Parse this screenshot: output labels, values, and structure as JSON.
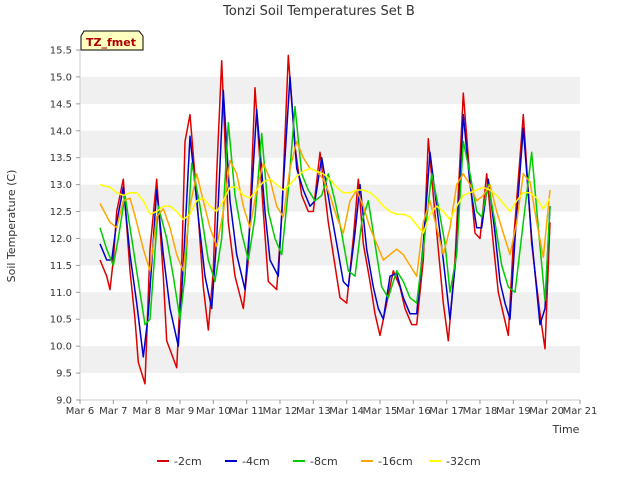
{
  "chart_data": {
    "type": "line",
    "title": "Tonzi Soil Temperatures Set B",
    "xlabel": "Time",
    "ylabel": "Soil Temperature (C)",
    "badge": "TZ_fmet",
    "xlim": [
      6,
      21
    ],
    "ylim": [
      9.0,
      15.5
    ],
    "x_ticks": [
      {
        "v": 6,
        "label": "Mar 6"
      },
      {
        "v": 7,
        "label": "Mar 7"
      },
      {
        "v": 8,
        "label": "Mar 8"
      },
      {
        "v": 9,
        "label": "Mar 9"
      },
      {
        "v": 10,
        "label": "Mar 10"
      },
      {
        "v": 11,
        "label": "Mar 11"
      },
      {
        "v": 12,
        "label": "Mar 12"
      },
      {
        "v": 13,
        "label": "Mar 13"
      },
      {
        "v": 14,
        "label": "Mar 14"
      },
      {
        "v": 15,
        "label": "Mar 15"
      },
      {
        "v": 16,
        "label": "Mar 16"
      },
      {
        "v": 17,
        "label": "Mar 17"
      },
      {
        "v": 18,
        "label": "Mar 18"
      },
      {
        "v": 19,
        "label": "Mar 19"
      },
      {
        "v": 20,
        "label": "Mar 20"
      },
      {
        "v": 21,
        "label": "Mar 21"
      }
    ],
    "y_ticks": [
      {
        "v": 9.0,
        "label": "9.0"
      },
      {
        "v": 9.5,
        "label": "9.5"
      },
      {
        "v": 10.0,
        "label": "10.0"
      },
      {
        "v": 10.5,
        "label": "10.5"
      },
      {
        "v": 11.0,
        "label": "11.0"
      },
      {
        "v": 11.5,
        "label": "11.5"
      },
      {
        "v": 12.0,
        "label": "12.0"
      },
      {
        "v": 12.5,
        "label": "12.5"
      },
      {
        "v": 13.0,
        "label": "13.0"
      },
      {
        "v": 13.5,
        "label": "13.5"
      },
      {
        "v": 14.0,
        "label": "14.0"
      },
      {
        "v": 14.5,
        "label": "14.5"
      },
      {
        "v": 15.0,
        "label": "15.0"
      },
      {
        "v": 15.5,
        "label": "15.5"
      }
    ],
    "grid": "horizontal bands",
    "legend_position": "bottom",
    "series": [
      {
        "name": "-2cm",
        "color": "#dd0000",
        "x": [
          6.6,
          6.8,
          6.9,
          7.0,
          7.1,
          7.3,
          7.5,
          7.65,
          7.75,
          7.95,
          8.1,
          8.3,
          8.5,
          8.6,
          8.9,
          9.05,
          9.15,
          9.3,
          9.55,
          9.7,
          9.85,
          10.0,
          10.1,
          10.25,
          10.45,
          10.65,
          10.9,
          11.05,
          11.25,
          11.5,
          11.65,
          11.9,
          12.05,
          12.25,
          12.45,
          12.65,
          12.85,
          13.0,
          13.2,
          13.45,
          13.6,
          13.8,
          14.0,
          14.2,
          14.35,
          14.5,
          14.7,
          14.85,
          15.0,
          15.2,
          15.4,
          15.6,
          15.75,
          15.95,
          16.1,
          16.3,
          16.45,
          16.6,
          16.75,
          16.9,
          17.05,
          17.25,
          17.5,
          17.7,
          17.85,
          18.0,
          18.2,
          18.4,
          18.55,
          18.7,
          18.85,
          19.0,
          19.3,
          19.55,
          19.8,
          19.95,
          20.1
        ],
        "y": [
          11.6,
          11.3,
          11.05,
          11.6,
          12.5,
          13.1,
          11.4,
          10.5,
          9.7,
          9.3,
          11.8,
          13.1,
          11.3,
          10.1,
          9.6,
          11.5,
          13.8,
          14.3,
          12.4,
          11.1,
          10.3,
          11.4,
          13.2,
          15.3,
          12.3,
          11.3,
          10.7,
          11.6,
          14.8,
          12.5,
          11.2,
          11.05,
          12.4,
          15.4,
          13.7,
          12.8,
          12.5,
          12.5,
          13.6,
          12.3,
          11.7,
          10.9,
          10.8,
          12.0,
          13.1,
          11.9,
          11.2,
          10.6,
          10.2,
          10.8,
          11.4,
          11.1,
          10.7,
          10.4,
          10.4,
          11.6,
          13.85,
          12.8,
          11.8,
          10.8,
          10.1,
          11.6,
          14.7,
          13.1,
          12.1,
          12.0,
          13.2,
          11.9,
          11.0,
          10.6,
          10.2,
          11.9,
          14.3,
          11.9,
          10.6,
          9.95,
          12.3
        ]
      },
      {
        "name": "-4cm",
        "color": "#0000cc",
        "x": [
          6.6,
          6.8,
          6.95,
          7.1,
          7.3,
          7.5,
          7.7,
          7.9,
          8.05,
          8.3,
          8.5,
          8.7,
          8.95,
          9.1,
          9.3,
          9.55,
          9.75,
          9.95,
          10.1,
          10.3,
          10.5,
          10.7,
          10.95,
          11.1,
          11.3,
          11.55,
          11.7,
          11.95,
          12.1,
          12.3,
          12.5,
          12.7,
          12.9,
          13.05,
          13.25,
          13.5,
          13.7,
          13.9,
          14.05,
          14.25,
          14.4,
          14.6,
          14.8,
          14.95,
          15.1,
          15.3,
          15.5,
          15.7,
          15.9,
          16.1,
          16.3,
          16.5,
          16.7,
          16.9,
          17.1,
          17.3,
          17.5,
          17.7,
          17.9,
          18.05,
          18.25,
          18.45,
          18.6,
          18.75,
          18.9,
          19.05,
          19.3,
          19.55,
          19.8,
          19.95,
          20.1
        ],
        "y": [
          11.9,
          11.6,
          11.6,
          12.3,
          12.95,
          11.7,
          10.8,
          9.8,
          10.6,
          12.9,
          11.7,
          10.7,
          10.0,
          11.5,
          13.9,
          12.4,
          11.3,
          10.7,
          12.0,
          14.75,
          12.7,
          11.7,
          11.05,
          12.3,
          14.4,
          12.5,
          11.6,
          11.3,
          13.0,
          15.0,
          13.3,
          12.9,
          12.6,
          12.7,
          13.5,
          12.6,
          11.9,
          11.2,
          11.1,
          12.1,
          13.0,
          11.8,
          11.1,
          10.7,
          10.5,
          11.3,
          11.35,
          10.9,
          10.6,
          10.6,
          11.9,
          13.6,
          12.6,
          11.6,
          10.5,
          11.8,
          14.3,
          13.0,
          12.2,
          12.2,
          13.1,
          12.1,
          11.2,
          10.8,
          10.5,
          12.0,
          14.05,
          12.0,
          10.4,
          10.7,
          12.6
        ]
      },
      {
        "name": "-8cm",
        "color": "#00cc00",
        "x": [
          6.6,
          6.8,
          7.0,
          7.15,
          7.35,
          7.55,
          7.75,
          7.95,
          8.1,
          8.35,
          8.6,
          8.8,
          9.0,
          9.15,
          9.35,
          9.6,
          9.85,
          10.05,
          10.25,
          10.45,
          10.65,
          10.85,
          11.05,
          11.25,
          11.45,
          11.65,
          11.85,
          12.05,
          12.25,
          12.45,
          12.65,
          12.85,
          13.05,
          13.25,
          13.45,
          13.65,
          13.85,
          14.05,
          14.25,
          14.45,
          14.65,
          14.85,
          15.05,
          15.25,
          15.5,
          15.7,
          15.9,
          16.1,
          16.3,
          16.55,
          16.75,
          16.95,
          17.1,
          17.3,
          17.5,
          17.7,
          17.9,
          18.05,
          18.25,
          18.45,
          18.65,
          18.85,
          19.05,
          19.3,
          19.55,
          19.75,
          19.95,
          20.1
        ],
        "y": [
          12.2,
          11.8,
          11.5,
          12.0,
          12.8,
          12.0,
          11.2,
          10.4,
          10.5,
          12.6,
          12.0,
          11.3,
          10.5,
          11.3,
          13.4,
          12.6,
          11.6,
          11.2,
          12.0,
          14.15,
          12.8,
          12.1,
          11.6,
          12.4,
          13.95,
          12.5,
          12.0,
          11.7,
          12.9,
          14.45,
          13.2,
          12.9,
          12.7,
          12.8,
          13.2,
          12.7,
          12.1,
          11.4,
          11.3,
          12.3,
          12.7,
          11.9,
          11.1,
          10.9,
          11.4,
          11.2,
          10.9,
          10.8,
          11.8,
          13.2,
          12.6,
          11.9,
          11.0,
          11.7,
          13.8,
          13.2,
          12.5,
          12.4,
          13.0,
          12.3,
          11.5,
          11.1,
          11.0,
          12.3,
          13.6,
          12.2,
          10.85,
          12.6
        ]
      },
      {
        "name": "-16cm",
        "color": "#ffa500",
        "x": [
          6.6,
          6.9,
          7.1,
          7.3,
          7.5,
          7.7,
          7.9,
          8.1,
          8.3,
          8.5,
          8.7,
          8.9,
          9.1,
          9.3,
          9.5,
          9.7,
          9.9,
          10.1,
          10.3,
          10.5,
          10.7,
          10.9,
          11.1,
          11.3,
          11.5,
          11.7,
          11.9,
          12.1,
          12.3,
          12.5,
          12.7,
          12.9,
          13.1,
          13.3,
          13.5,
          13.7,
          13.9,
          14.1,
          14.3,
          14.5,
          14.7,
          14.9,
          15.1,
          15.3,
          15.5,
          15.7,
          15.9,
          16.1,
          16.3,
          16.5,
          16.7,
          16.9,
          17.1,
          17.3,
          17.5,
          17.7,
          17.9,
          18.1,
          18.3,
          18.5,
          18.7,
          18.9,
          19.1,
          19.3,
          19.5,
          19.7,
          19.9,
          20.1
        ],
        "y": [
          12.65,
          12.3,
          12.2,
          12.7,
          12.75,
          12.3,
          11.8,
          11.4,
          12.4,
          12.55,
          12.2,
          11.7,
          11.4,
          12.6,
          13.2,
          12.7,
          12.2,
          11.85,
          12.5,
          13.45,
          13.2,
          12.6,
          12.2,
          12.9,
          13.4,
          13.1,
          12.6,
          12.4,
          13.3,
          13.8,
          13.5,
          13.3,
          13.25,
          13.1,
          12.8,
          12.4,
          12.1,
          12.7,
          12.9,
          12.6,
          12.2,
          11.9,
          11.6,
          11.7,
          11.8,
          11.7,
          11.5,
          11.3,
          12.3,
          12.7,
          12.2,
          11.7,
          12.2,
          13.0,
          13.2,
          13.0,
          12.7,
          12.8,
          13.0,
          12.5,
          12.1,
          11.7,
          12.3,
          13.2,
          13.05,
          12.3,
          11.65,
          12.9
        ]
      },
      {
        "name": "-32cm",
        "color": "#ffff00",
        "x": [
          6.6,
          6.9,
          7.1,
          7.3,
          7.5,
          7.7,
          7.9,
          8.1,
          8.3,
          8.5,
          8.7,
          8.9,
          9.1,
          9.3,
          9.5,
          9.7,
          9.9,
          10.1,
          10.3,
          10.5,
          10.7,
          10.9,
          11.1,
          11.3,
          11.5,
          11.7,
          11.9,
          12.1,
          12.3,
          12.5,
          12.7,
          12.9,
          13.1,
          13.3,
          13.5,
          13.7,
          13.9,
          14.1,
          14.3,
          14.5,
          14.7,
          14.9,
          15.1,
          15.3,
          15.5,
          15.7,
          15.9,
          16.1,
          16.3,
          16.5,
          16.7,
          16.9,
          17.1,
          17.3,
          17.5,
          17.7,
          17.9,
          18.1,
          18.3,
          18.5,
          18.7,
          18.9,
          19.1,
          19.3,
          19.5,
          19.7,
          19.9,
          20.1
        ],
        "y": [
          13.0,
          12.95,
          12.85,
          12.8,
          12.85,
          12.85,
          12.7,
          12.45,
          12.5,
          12.6,
          12.6,
          12.5,
          12.35,
          12.45,
          12.7,
          12.75,
          12.6,
          12.5,
          12.7,
          12.95,
          12.95,
          12.8,
          12.75,
          12.9,
          13.05,
          13.1,
          13.0,
          12.9,
          13.0,
          13.15,
          13.25,
          13.3,
          13.25,
          13.2,
          13.1,
          12.95,
          12.85,
          12.85,
          12.9,
          12.9,
          12.85,
          12.75,
          12.6,
          12.5,
          12.45,
          12.45,
          12.4,
          12.25,
          12.1,
          12.45,
          12.6,
          12.5,
          12.35,
          12.6,
          12.8,
          12.85,
          12.9,
          12.95,
          12.9,
          12.8,
          12.65,
          12.5,
          12.7,
          12.85,
          12.85,
          12.75,
          12.55,
          12.75
        ]
      }
    ]
  }
}
